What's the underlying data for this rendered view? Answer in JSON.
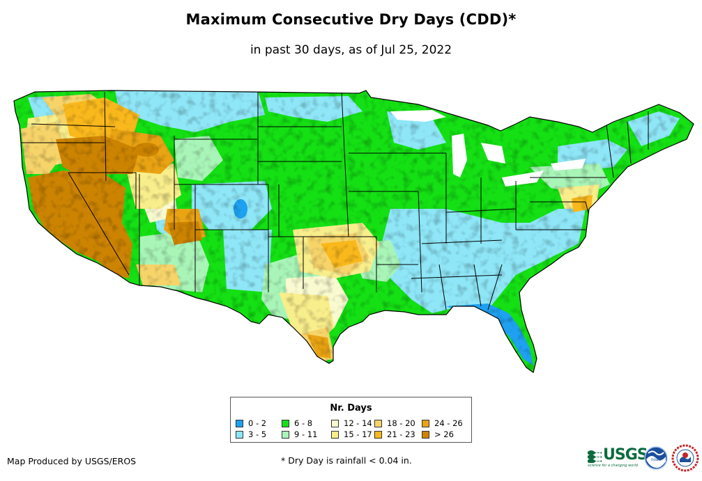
{
  "title": "Maximum Consecutive Dry Days (CDD)*",
  "subtitle": "in past 30 days, as of Jul 25, 2022",
  "legend": {
    "title": "Nr. Days",
    "items": [
      {
        "label": "0 - 2",
        "color": "#1ea1f0"
      },
      {
        "label": "3 - 5",
        "color": "#8ee6f7"
      },
      {
        "label": "6 - 8",
        "color": "#14e014"
      },
      {
        "label": "9 - 11",
        "color": "#a9f5b8"
      },
      {
        "label": "12 - 14",
        "color": "#fafad0"
      },
      {
        "label": "15 - 17",
        "color": "#f9ee8c"
      },
      {
        "label": "18 - 20",
        "color": "#f6d46a"
      },
      {
        "label": "21 - 23",
        "color": "#f9b81c"
      },
      {
        "label": "24 - 26",
        "color": "#e9a313"
      },
      {
        "label": "> 26",
        "color": "#cc8400"
      }
    ]
  },
  "credit": "Map Produced by USGS/EROS",
  "footnote": "* Dry Day is rainfall < 0.04 in.",
  "logos": {
    "usgs": "USGS",
    "usgs_tagline": "science for a changing world",
    "noaa": "noaa"
  },
  "icons": [
    "usgs-logo-icon",
    "noaa-logo-icon",
    "nws-logo-icon"
  ]
}
